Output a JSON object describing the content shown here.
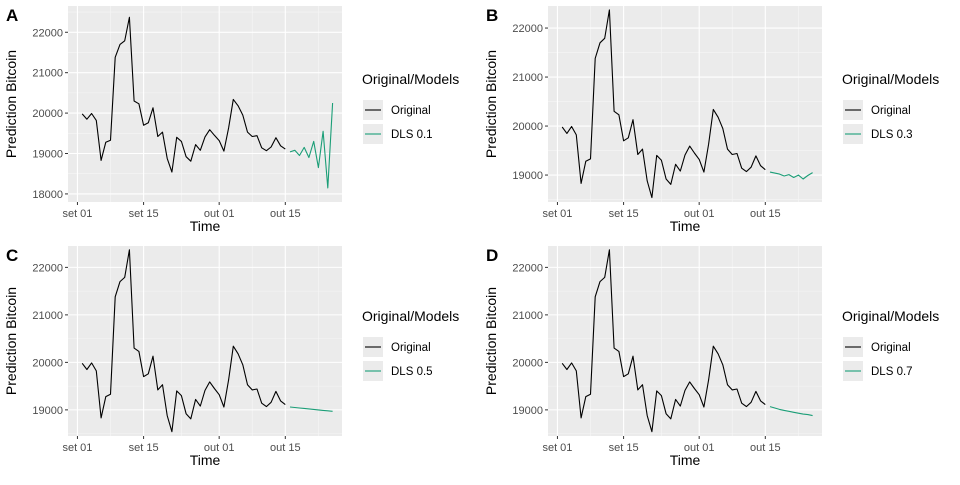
{
  "chart_data": [
    {
      "panel_tag": "A",
      "type": "line",
      "xlabel": "Time",
      "ylabel": "Prediction Bitcoin",
      "legend_title": "Original/Models",
      "legend_position": "right",
      "grid": true,
      "x_ticks": [
        "2022-09-01",
        "2022-09-15",
        "2022-10-01",
        "2022-10-15"
      ],
      "x_tick_labels": [
        "set 01",
        "set 15",
        "out 01",
        "out 15"
      ],
      "y_ticks": [
        18000,
        19000,
        20000,
        21000,
        22000
      ],
      "y_tick_labels": [
        "18000",
        "19000",
        "20000",
        "21000",
        "22000"
      ],
      "xlim": [
        "2022-08-30",
        "2022-10-27"
      ],
      "ylim": [
        17800,
        22650
      ],
      "series": [
        {
          "name": "Original",
          "color": "#000000",
          "key": "original"
        },
        {
          "name": "DLS 0.1",
          "color": "#1b9e77",
          "values": [
            19040,
            19080,
            18950,
            19150,
            18900,
            19300,
            18650,
            19550,
            18150,
            20250
          ]
        }
      ]
    },
    {
      "panel_tag": "B",
      "type": "line",
      "xlabel": "Time",
      "ylabel": "Prediction Bitcoin",
      "legend_title": "Original/Models",
      "legend_position": "right",
      "grid": true,
      "x_ticks": [
        "2022-09-01",
        "2022-09-15",
        "2022-10-01",
        "2022-10-15"
      ],
      "x_tick_labels": [
        "set 01",
        "set 15",
        "out 01",
        "out 15"
      ],
      "y_ticks": [
        19000,
        20000,
        21000,
        22000
      ],
      "y_tick_labels": [
        "19000",
        "20000",
        "21000",
        "22000"
      ],
      "xlim": [
        "2022-08-30",
        "2022-10-27"
      ],
      "ylim": [
        18450,
        22450
      ],
      "series": [
        {
          "name": "Original",
          "color": "#000000",
          "key": "original"
        },
        {
          "name": "DLS 0.3",
          "color": "#1b9e77",
          "values": [
            19060,
            19040,
            19020,
            18980,
            19010,
            18950,
            19000,
            18920,
            18990,
            19050
          ]
        }
      ]
    },
    {
      "panel_tag": "C",
      "type": "line",
      "xlabel": "Time",
      "ylabel": "Prediction Bitcoin",
      "legend_title": "Original/Models",
      "legend_position": "right",
      "grid": true,
      "x_ticks": [
        "2022-09-01",
        "2022-09-15",
        "2022-10-01",
        "2022-10-15"
      ],
      "x_tick_labels": [
        "set 01",
        "set 15",
        "out 01",
        "out 15"
      ],
      "y_ticks": [
        19000,
        20000,
        21000,
        22000
      ],
      "y_tick_labels": [
        "19000",
        "20000",
        "21000",
        "22000"
      ],
      "xlim": [
        "2022-08-30",
        "2022-10-27"
      ],
      "ylim": [
        18450,
        22450
      ],
      "series": [
        {
          "name": "Original",
          "color": "#000000",
          "key": "original"
        },
        {
          "name": "DLS 0.5",
          "color": "#1b9e77",
          "values": [
            19060,
            19050,
            19040,
            19030,
            19020,
            19010,
            19000,
            18990,
            18980,
            18970
          ]
        }
      ]
    },
    {
      "panel_tag": "D",
      "type": "line",
      "xlabel": "Time",
      "ylabel": "Prediction Bitcoin",
      "legend_title": "Original/Models",
      "legend_position": "right",
      "grid": true,
      "x_ticks": [
        "2022-09-01",
        "2022-09-15",
        "2022-10-01",
        "2022-10-15"
      ],
      "x_tick_labels": [
        "set 01",
        "set 15",
        "out 01",
        "out 15"
      ],
      "y_ticks": [
        19000,
        20000,
        21000,
        22000
      ],
      "y_tick_labels": [
        "19000",
        "20000",
        "21000",
        "22000"
      ],
      "xlim": [
        "2022-08-30",
        "2022-10-27"
      ],
      "ylim": [
        18450,
        22450
      ],
      "series": [
        {
          "name": "Original",
          "color": "#000000",
          "key": "original"
        },
        {
          "name": "DLS 0.7",
          "color": "#1b9e77",
          "values": [
            19070,
            19040,
            19010,
            18990,
            18970,
            18950,
            18930,
            18910,
            18900,
            18880
          ]
        }
      ]
    }
  ],
  "original_series": {
    "x": [
      "2022-09-02",
      "2022-09-03",
      "2022-09-04",
      "2022-09-05",
      "2022-09-06",
      "2022-09-07",
      "2022-09-08",
      "2022-09-09",
      "2022-09-10",
      "2022-09-11",
      "2022-09-12",
      "2022-09-13",
      "2022-09-14",
      "2022-09-15",
      "2022-09-16",
      "2022-09-17",
      "2022-09-18",
      "2022-09-19",
      "2022-09-20",
      "2022-09-21",
      "2022-09-22",
      "2022-09-23",
      "2022-09-24",
      "2022-09-25",
      "2022-09-26",
      "2022-09-27",
      "2022-09-28",
      "2022-09-29",
      "2022-09-30",
      "2022-10-01",
      "2022-10-02",
      "2022-10-03",
      "2022-10-04",
      "2022-10-05",
      "2022-10-06",
      "2022-10-07",
      "2022-10-08",
      "2022-10-09",
      "2022-10-10",
      "2022-10-11",
      "2022-10-12",
      "2022-10-13",
      "2022-10-14",
      "2022-10-15"
    ],
    "y": [
      19980,
      19850,
      19990,
      19820,
      18830,
      19280,
      19330,
      21380,
      21700,
      21790,
      22370,
      20300,
      20230,
      19700,
      19760,
      20130,
      19420,
      19530,
      18880,
      18540,
      19400,
      19300,
      18920,
      18810,
      19220,
      19080,
      19410,
      19590,
      19450,
      19320,
      19060,
      19630,
      20340,
      20180,
      19950,
      19530,
      19420,
      19440,
      19140,
      19070,
      19160,
      19390,
      19190,
      19110
    ]
  },
  "forecast_x": [
    "2022-10-16",
    "2022-10-17",
    "2022-10-18",
    "2022-10-19",
    "2022-10-20",
    "2022-10-21",
    "2022-10-22",
    "2022-10-23",
    "2022-10-24",
    "2022-10-25"
  ]
}
